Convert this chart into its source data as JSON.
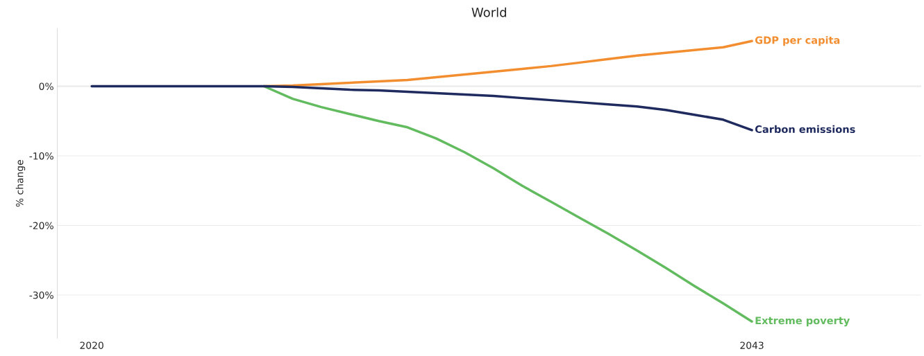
{
  "chart_data": {
    "type": "line",
    "title": "World",
    "ylabel": "% change",
    "x": [
      2020,
      2021,
      2022,
      2023,
      2024,
      2025,
      2026,
      2027,
      2028,
      2029,
      2030,
      2031,
      2032,
      2033,
      2034,
      2035,
      2036,
      2037,
      2038,
      2039,
      2040,
      2041,
      2042,
      2043
    ],
    "series": [
      {
        "name": "GDP per capita",
        "color": "#f28e30",
        "values": [
          null,
          null,
          null,
          null,
          null,
          null,
          0,
          0.1,
          0.3,
          0.5,
          0.7,
          0.9,
          1.3,
          1.7,
          2.1,
          2.5,
          2.9,
          3.4,
          3.9,
          4.4,
          4.8,
          5.2,
          5.6,
          6.5
        ]
      },
      {
        "name": "Extreme poverty",
        "color": "#62bb5e",
        "values": [
          null,
          null,
          null,
          null,
          null,
          null,
          0,
          -1.8,
          -3.0,
          -4.0,
          -5.0,
          -5.9,
          -7.5,
          -9.5,
          -11.8,
          -14.3,
          -16.6,
          -18.9,
          -21.2,
          -23.6,
          -26.1,
          -28.7,
          -31.2,
          -33.8
        ]
      },
      {
        "name": "Carbon emissions",
        "color": "#1f2b5e",
        "values": [
          0,
          0,
          0,
          0,
          0,
          0,
          0,
          -0.1,
          -0.3,
          -0.5,
          -0.6,
          -0.8,
          -1.0,
          -1.2,
          -1.4,
          -1.7,
          -2.0,
          -2.3,
          -2.6,
          -2.9,
          -3.4,
          -4.1,
          -4.8,
          -6.3
        ]
      }
    ],
    "xlim": [
      2018.8,
      2048.9
    ],
    "xticks": [
      2020,
      2043
    ],
    "ylim": [
      -36.2,
      8.3
    ],
    "yticks": [
      {
        "value": 0,
        "label": "0%"
      },
      {
        "value": -10,
        "label": "-10%"
      },
      {
        "value": -20,
        "label": "-20%"
      },
      {
        "value": -30,
        "label": "-30%"
      }
    ],
    "grid": "y",
    "legend": false,
    "marker": "none",
    "line_style": "solid"
  }
}
